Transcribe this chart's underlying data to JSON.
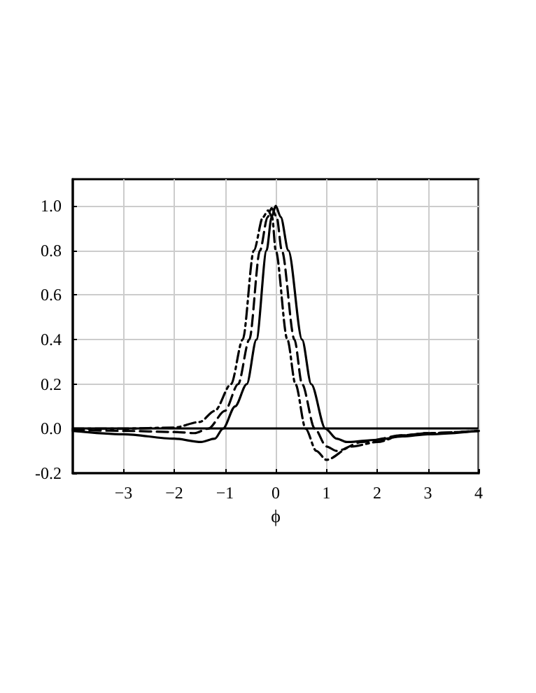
{
  "chart_data": {
    "type": "line",
    "xlabel": "ϕ",
    "xlim": [
      -4,
      4
    ],
    "xticks": [
      -3,
      -2,
      -1,
      0,
      1,
      2,
      3,
      4
    ],
    "ylim": [
      -0.2,
      1.12
    ],
    "yticks": [
      {
        "value": -0.2,
        "label": "-0.2"
      },
      {
        "value": 0,
        "label": "0.0"
      },
      {
        "value": 0.2,
        "label": "0.2"
      },
      {
        "value": 0.4,
        "label": "0.4"
      },
      {
        "value": 0.6,
        "label": "0.6"
      },
      {
        "value": 0.8,
        "label": "0.8"
      },
      {
        "value": 1,
        "label": "1.0"
      }
    ],
    "grid": true,
    "marker": "none",
    "ref_lines": [
      {
        "axis": "y",
        "value": 0,
        "color": "#000000",
        "line_style": "solid"
      }
    ],
    "series": [
      {
        "color": "#000000",
        "line_style": "solid",
        "x": [
          -4,
          -3,
          -2,
          -1.47,
          -1.2,
          -1.04,
          -0.8,
          -0.57,
          -0.38,
          -0.18,
          -0.08,
          0,
          0.1,
          0.25,
          0.52,
          0.7,
          0.98,
          1.2,
          1.4,
          2,
          2.5,
          3,
          4
        ],
        "values": [
          -0.01,
          -0.025,
          -0.045,
          -0.06,
          -0.045,
          0,
          0.1,
          0.2,
          0.4,
          0.8,
          0.95,
          1.0,
          0.95,
          0.8,
          0.4,
          0.2,
          0,
          -0.045,
          -0.06,
          -0.05,
          -0.035,
          -0.025,
          -0.01
        ]
      },
      {
        "color": "#000000",
        "line_style": "dashed",
        "x": [
          -4,
          -3,
          -2,
          -1.6,
          -1.33,
          -1.0,
          -0.74,
          -0.52,
          -0.31,
          -0.16,
          -0.08,
          0.02,
          0.12,
          0.37,
          0.52,
          0.77,
          1.0,
          1.2,
          1.7,
          2.5,
          3,
          4
        ],
        "values": [
          -0.005,
          -0.01,
          -0.015,
          -0.02,
          0,
          0.08,
          0.2,
          0.4,
          0.8,
          0.95,
          0.99,
          0.95,
          0.8,
          0.4,
          0.2,
          0,
          -0.08,
          -0.1,
          -0.06,
          -0.03,
          -0.02,
          -0.01
        ]
      },
      {
        "color": "#000000",
        "line_style": "dashdot",
        "x": [
          -4,
          -3,
          -2,
          -1.5,
          -1.2,
          -0.88,
          -0.65,
          -0.43,
          -0.25,
          -0.15,
          -0.07,
          0,
          0.23,
          0.39,
          0.59,
          0.8,
          1.0,
          1.5,
          2,
          2.5,
          3,
          4
        ],
        "values": [
          0,
          0,
          0.005,
          0.03,
          0.08,
          0.2,
          0.4,
          0.8,
          0.95,
          0.98,
          0.95,
          0.8,
          0.4,
          0.2,
          0,
          -0.1,
          -0.14,
          -0.08,
          -0.06,
          -0.03,
          -0.02,
          -0.01
        ]
      }
    ]
  }
}
